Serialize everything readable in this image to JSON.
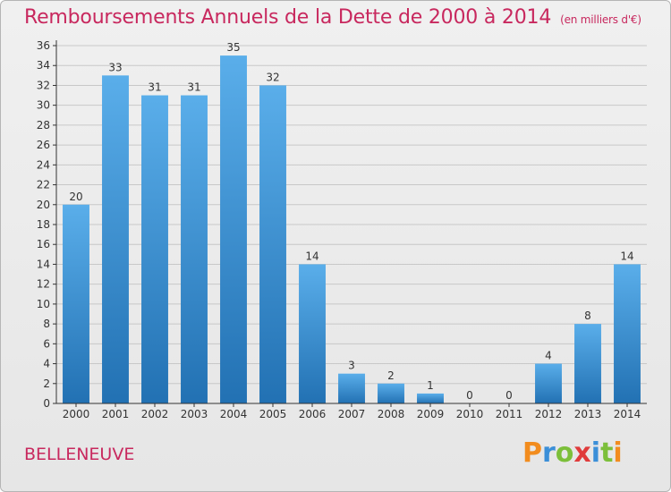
{
  "title": "Remboursements Annuels de la Dette de 2000 à 2014",
  "unit": "(en milliers d'€)",
  "commune": "BELLENEUVE",
  "logo": {
    "letters": [
      "P",
      "r",
      "o",
      "x",
      "i",
      "t",
      "i"
    ],
    "colors": [
      "#f28c1e",
      "#3b8fd8",
      "#7cbf3a",
      "#e03b3b",
      "#3b8fd8",
      "#7cbf3a",
      "#f28c1e"
    ]
  },
  "colors": {
    "title": "#c8285e",
    "bar_top": "#5aaeea",
    "bar_bottom": "#2271b3",
    "grid": "#c8c8c8",
    "axis": "#333333",
    "text": "#333333"
  },
  "chart_data": {
    "type": "bar",
    "title": "Remboursements Annuels de la Dette de 2000 à 2014",
    "categories": [
      "2000",
      "2001",
      "2002",
      "2003",
      "2004",
      "2005",
      "2006",
      "2007",
      "2008",
      "2009",
      "2010",
      "2011",
      "2012",
      "2013",
      "2014"
    ],
    "values": [
      20,
      33,
      31,
      31,
      35,
      32,
      14,
      3,
      2,
      1,
      0,
      0,
      4,
      8,
      14
    ],
    "ylim": [
      0,
      36
    ],
    "yticks": [
      0,
      2,
      4,
      6,
      8,
      10,
      12,
      14,
      16,
      18,
      20,
      22,
      24,
      26,
      28,
      30,
      32,
      34,
      36
    ],
    "grid": true,
    "legend": "none"
  }
}
